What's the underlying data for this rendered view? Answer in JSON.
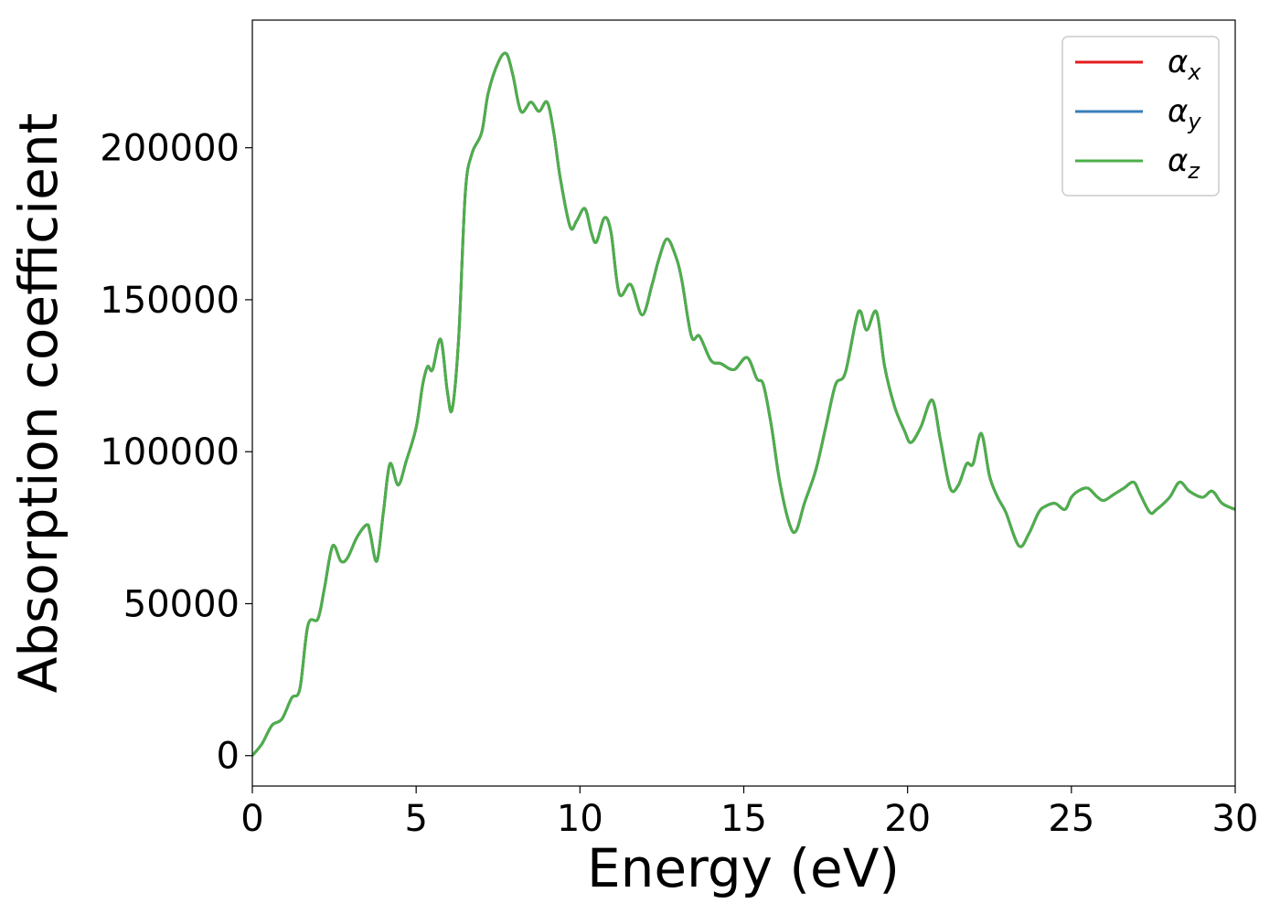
{
  "chart_data": {
    "type": "line",
    "title": "",
    "xlabel": "Energy (eV)",
    "ylabel": "Absorption coefficient",
    "xlim": [
      0,
      30
    ],
    "ylim": [
      -10000,
      242000
    ],
    "x_ticks": [
      0,
      5,
      10,
      15,
      20,
      25,
      30
    ],
    "x_tick_labels": [
      "0",
      "5",
      "10",
      "15",
      "20",
      "25",
      "30"
    ],
    "y_ticks": [
      0,
      50000,
      100000,
      150000,
      200000
    ],
    "y_tick_labels": [
      "0",
      "50000",
      "100000",
      "150000",
      "200000"
    ],
    "grid": false,
    "legend_position": "top-right",
    "series": [
      {
        "name": "αx",
        "symbol": "α",
        "subscript": "x",
        "color": "#e41a1c",
        "x": [
          0,
          0.3,
          0.6,
          0.9,
          1.2,
          1.45,
          1.7,
          2.0,
          2.2,
          2.45,
          2.7,
          2.9,
          3.2,
          3.5,
          3.6,
          3.8,
          4.0,
          4.2,
          4.45,
          4.7,
          5.0,
          5.2,
          5.35,
          5.5,
          5.75,
          5.95,
          6.1,
          6.3,
          6.5,
          6.7,
          7.0,
          7.2,
          7.5,
          7.75,
          7.95,
          8.2,
          8.5,
          8.75,
          9.0,
          9.2,
          9.4,
          9.7,
          9.9,
          10.15,
          10.35,
          10.5,
          10.75,
          10.95,
          11.2,
          11.55,
          11.9,
          12.2,
          12.4,
          12.65,
          12.9,
          13.1,
          13.4,
          13.65,
          14.0,
          14.3,
          14.7,
          15.1,
          15.4,
          15.6,
          15.85,
          16.1,
          16.4,
          16.6,
          16.85,
          17.2,
          17.5,
          17.8,
          18.1,
          18.5,
          18.75,
          19.05,
          19.3,
          19.6,
          19.9,
          20.1,
          20.4,
          20.75,
          21.0,
          21.3,
          21.55,
          21.8,
          22.0,
          22.25,
          22.5,
          22.75,
          23.0,
          23.4,
          23.7,
          24.0,
          24.2,
          24.5,
          24.8,
          25.0,
          25.2,
          25.5,
          25.8,
          26.0,
          26.3,
          26.6,
          26.9,
          27.1,
          27.4,
          27.6,
          28.0,
          28.3,
          28.6,
          29.0,
          29.3,
          29.6,
          30.0
        ],
        "y": [
          0,
          4000,
          10000,
          12000,
          19000,
          22000,
          43000,
          45000,
          55000,
          69000,
          64000,
          65000,
          72000,
          76000,
          73000,
          64000,
          80000,
          96000,
          89000,
          97000,
          108000,
          122000,
          128000,
          127000,
          137000,
          120000,
          114000,
          138000,
          185000,
          198000,
          205000,
          218000,
          228000,
          231000,
          224000,
          212000,
          215000,
          212000,
          215000,
          205000,
          190000,
          174000,
          176000,
          180000,
          172000,
          169000,
          177000,
          172000,
          152000,
          155000,
          145000,
          155000,
          163000,
          170000,
          165000,
          157000,
          138000,
          138000,
          130000,
          129000,
          127000,
          131000,
          124000,
          122000,
          108000,
          90000,
          76000,
          74000,
          83000,
          94000,
          108000,
          122000,
          126000,
          146000,
          140000,
          146000,
          128000,
          115000,
          107000,
          103000,
          108000,
          117000,
          104000,
          88000,
          89000,
          96000,
          96000,
          106000,
          92000,
          85000,
          80000,
          69000,
          73000,
          80000,
          82000,
          83000,
          81000,
          85000,
          87000,
          88000,
          85000,
          84000,
          86000,
          88000,
          90000,
          86000,
          80000,
          81000,
          85000,
          90000,
          87000,
          85000,
          87000,
          83000,
          81000
        ]
      },
      {
        "name": "αy",
        "symbol": "α",
        "subscript": "y",
        "color": "#377eb8",
        "x": [
          0,
          0.3,
          0.6,
          0.9,
          1.2,
          1.45,
          1.7,
          2.0,
          2.2,
          2.45,
          2.7,
          2.9,
          3.2,
          3.5,
          3.6,
          3.8,
          4.0,
          4.2,
          4.45,
          4.7,
          5.0,
          5.2,
          5.35,
          5.5,
          5.75,
          5.95,
          6.1,
          6.3,
          6.5,
          6.7,
          7.0,
          7.2,
          7.5,
          7.75,
          7.95,
          8.2,
          8.5,
          8.75,
          9.0,
          9.2,
          9.4,
          9.7,
          9.9,
          10.15,
          10.35,
          10.5,
          10.75,
          10.95,
          11.2,
          11.55,
          11.9,
          12.2,
          12.4,
          12.65,
          12.9,
          13.1,
          13.4,
          13.65,
          14.0,
          14.3,
          14.7,
          15.1,
          15.4,
          15.6,
          15.85,
          16.1,
          16.4,
          16.6,
          16.85,
          17.2,
          17.5,
          17.8,
          18.1,
          18.5,
          18.75,
          19.05,
          19.3,
          19.6,
          19.9,
          20.1,
          20.4,
          20.75,
          21.0,
          21.3,
          21.55,
          21.8,
          22.0,
          22.25,
          22.5,
          22.75,
          23.0,
          23.4,
          23.7,
          24.0,
          24.2,
          24.5,
          24.8,
          25.0,
          25.2,
          25.5,
          25.8,
          26.0,
          26.3,
          26.6,
          26.9,
          27.1,
          27.4,
          27.6,
          28.0,
          28.3,
          28.6,
          29.0,
          29.3,
          29.6,
          30.0
        ],
        "y": [
          0,
          4000,
          10000,
          12000,
          19000,
          22000,
          43000,
          45000,
          55000,
          69000,
          64000,
          65000,
          72000,
          76000,
          73000,
          64000,
          80000,
          96000,
          89000,
          97000,
          108000,
          122000,
          128000,
          127000,
          137000,
          120000,
          114000,
          138000,
          185000,
          198000,
          205000,
          218000,
          228000,
          231000,
          224000,
          212000,
          215000,
          212000,
          215000,
          205000,
          190000,
          174000,
          176000,
          180000,
          172000,
          169000,
          177000,
          172000,
          152000,
          155000,
          145000,
          155000,
          163000,
          170000,
          165000,
          157000,
          138000,
          138000,
          130000,
          129000,
          127000,
          131000,
          124000,
          122000,
          108000,
          90000,
          76000,
          74000,
          83000,
          94000,
          108000,
          122000,
          126000,
          146000,
          140000,
          146000,
          128000,
          115000,
          107000,
          103000,
          108000,
          117000,
          104000,
          88000,
          89000,
          96000,
          96000,
          106000,
          92000,
          85000,
          80000,
          69000,
          73000,
          80000,
          82000,
          83000,
          81000,
          85000,
          87000,
          88000,
          85000,
          84000,
          86000,
          88000,
          90000,
          86000,
          80000,
          81000,
          85000,
          90000,
          87000,
          85000,
          87000,
          83000,
          81000
        ]
      },
      {
        "name": "αz",
        "symbol": "α",
        "subscript": "z",
        "color": "#4daf4a",
        "x": [
          0,
          0.3,
          0.6,
          0.9,
          1.2,
          1.45,
          1.7,
          2.0,
          2.2,
          2.45,
          2.7,
          2.9,
          3.2,
          3.5,
          3.6,
          3.8,
          4.0,
          4.2,
          4.45,
          4.7,
          5.0,
          5.2,
          5.35,
          5.5,
          5.75,
          5.95,
          6.1,
          6.3,
          6.5,
          6.7,
          7.0,
          7.2,
          7.5,
          7.75,
          7.95,
          8.2,
          8.5,
          8.75,
          9.0,
          9.2,
          9.4,
          9.7,
          9.9,
          10.15,
          10.35,
          10.5,
          10.75,
          10.95,
          11.2,
          11.55,
          11.9,
          12.2,
          12.4,
          12.65,
          12.9,
          13.1,
          13.4,
          13.65,
          14.0,
          14.3,
          14.7,
          15.1,
          15.4,
          15.6,
          15.85,
          16.1,
          16.4,
          16.6,
          16.85,
          17.2,
          17.5,
          17.8,
          18.1,
          18.5,
          18.75,
          19.05,
          19.3,
          19.6,
          19.9,
          20.1,
          20.4,
          20.75,
          21.0,
          21.3,
          21.55,
          21.8,
          22.0,
          22.25,
          22.5,
          22.75,
          23.0,
          23.4,
          23.7,
          24.0,
          24.2,
          24.5,
          24.8,
          25.0,
          25.2,
          25.5,
          25.8,
          26.0,
          26.3,
          26.6,
          26.9,
          27.1,
          27.4,
          27.6,
          28.0,
          28.3,
          28.6,
          29.0,
          29.3,
          29.6,
          30.0
        ],
        "y": [
          0,
          4000,
          10000,
          12000,
          19000,
          22000,
          43000,
          45000,
          55000,
          69000,
          64000,
          65000,
          72000,
          76000,
          73000,
          64000,
          80000,
          96000,
          89000,
          97000,
          108000,
          122000,
          128000,
          127000,
          137000,
          120000,
          114000,
          138000,
          185000,
          198000,
          205000,
          218000,
          228000,
          231000,
          224000,
          212000,
          215000,
          212000,
          215000,
          205000,
          190000,
          174000,
          176000,
          180000,
          172000,
          169000,
          177000,
          172000,
          152000,
          155000,
          145000,
          155000,
          163000,
          170000,
          165000,
          157000,
          138000,
          138000,
          130000,
          129000,
          127000,
          131000,
          124000,
          122000,
          108000,
          90000,
          76000,
          74000,
          83000,
          94000,
          108000,
          122000,
          126000,
          146000,
          140000,
          146000,
          128000,
          115000,
          107000,
          103000,
          108000,
          117000,
          104000,
          88000,
          89000,
          96000,
          96000,
          106000,
          92000,
          85000,
          80000,
          69000,
          73000,
          80000,
          82000,
          83000,
          81000,
          85000,
          87000,
          88000,
          85000,
          84000,
          86000,
          88000,
          90000,
          86000,
          80000,
          81000,
          85000,
          90000,
          87000,
          85000,
          87000,
          83000,
          81000
        ]
      }
    ]
  }
}
